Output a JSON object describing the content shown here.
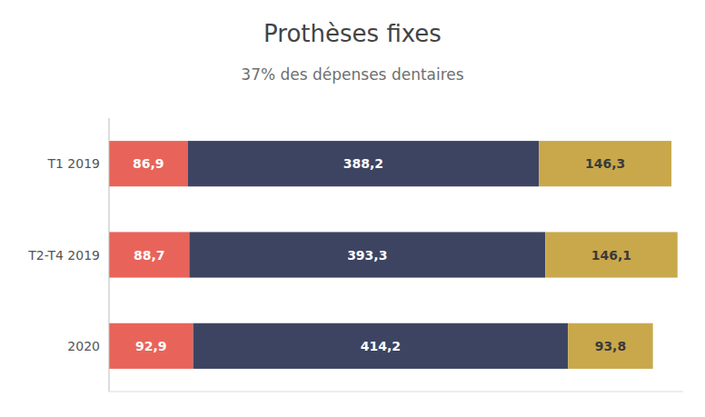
{
  "chart_data": {
    "type": "bar",
    "orientation": "horizontal",
    "stacked": true,
    "title": "Prothèses fixes",
    "subtitle": "37% des dépenses dentaires",
    "categories": [
      "T1 2019",
      "T2-T4 2019",
      "2020"
    ],
    "series": [
      {
        "color": "#e8645a",
        "values": [
          86.9,
          88.7,
          92.9
        ],
        "value_labels": [
          "86,9",
          "88,7",
          "92,9"
        ]
      },
      {
        "color": "#3d4462",
        "values": [
          388.2,
          393.3,
          414.2
        ],
        "value_labels": [
          "388,2",
          "393,3",
          "414,2"
        ]
      },
      {
        "color": "#c8a84b",
        "values": [
          146.3,
          146.1,
          93.8
        ],
        "value_labels": [
          "146,3",
          "146,1",
          "93,8"
        ]
      }
    ],
    "xlim": [
      0,
      634.381
    ],
    "data_labels": true,
    "tick_labels": "y",
    "grid": false
  }
}
